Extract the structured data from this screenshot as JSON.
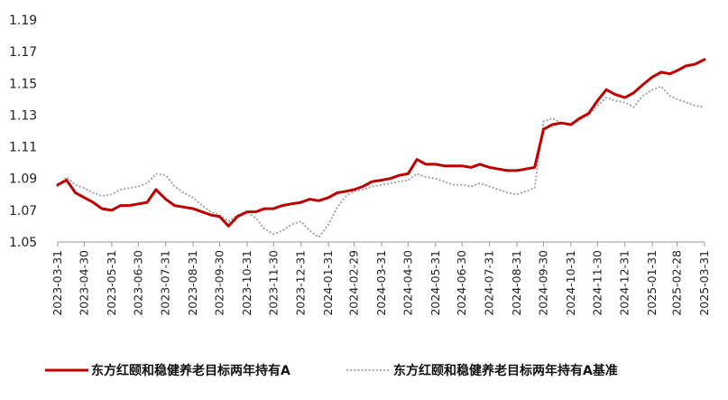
{
  "chart_data": {
    "type": "line",
    "title": "",
    "xlabel": "",
    "ylabel": "",
    "ylim": [
      1.05,
      1.19
    ],
    "yticks": [
      "1.05",
      "1.07",
      "1.09",
      "1.11",
      "1.13",
      "1.15",
      "1.17",
      "1.19"
    ],
    "xticks": [
      "2023-03-31",
      "2023-04-30",
      "2023-05-31",
      "2023-06-30",
      "2023-07-31",
      "2023-08-31",
      "2023-09-30",
      "2023-10-31",
      "2023-11-30",
      "2023-12-31",
      "2024-01-31",
      "2024-02-29",
      "2024-03-31",
      "2024-04-30",
      "2024-05-31",
      "2024-06-30",
      "2024-07-31",
      "2024-08-31",
      "2024-09-30",
      "2024-10-31",
      "2024-11-30",
      "2024-12-31",
      "2025-01-31",
      "2025-02-28",
      "2025-03-31"
    ],
    "grid": false,
    "legend_position": "bottom",
    "series": [
      {
        "name": "东方红颐和稳健养老目标两年持有A",
        "color": "#c00000",
        "style": "solid",
        "points": [
          [
            "2023-03-31",
            1.086
          ],
          [
            "2023-04-10",
            1.089
          ],
          [
            "2023-04-20",
            1.081
          ],
          [
            "2023-04-30",
            1.078
          ],
          [
            "2023-05-10",
            1.075
          ],
          [
            "2023-05-20",
            1.071
          ],
          [
            "2023-05-31",
            1.07
          ],
          [
            "2023-06-10",
            1.073
          ],
          [
            "2023-06-20",
            1.073
          ],
          [
            "2023-06-30",
            1.074
          ],
          [
            "2023-07-10",
            1.075
          ],
          [
            "2023-07-20",
            1.083
          ],
          [
            "2023-07-31",
            1.077
          ],
          [
            "2023-08-10",
            1.073
          ],
          [
            "2023-08-20",
            1.072
          ],
          [
            "2023-08-31",
            1.071
          ],
          [
            "2023-09-10",
            1.069
          ],
          [
            "2023-09-20",
            1.067
          ],
          [
            "2023-09-30",
            1.066
          ],
          [
            "2023-10-10",
            1.06
          ],
          [
            "2023-10-20",
            1.066
          ],
          [
            "2023-10-31",
            1.069
          ],
          [
            "2023-11-10",
            1.069
          ],
          [
            "2023-11-20",
            1.071
          ],
          [
            "2023-11-30",
            1.071
          ],
          [
            "2023-12-10",
            1.073
          ],
          [
            "2023-12-20",
            1.074
          ],
          [
            "2023-12-31",
            1.075
          ],
          [
            "2024-01-10",
            1.077
          ],
          [
            "2024-01-20",
            1.076
          ],
          [
            "2024-01-31",
            1.078
          ],
          [
            "2024-02-10",
            1.081
          ],
          [
            "2024-02-20",
            1.082
          ],
          [
            "2024-02-29",
            1.083
          ],
          [
            "2024-03-10",
            1.085
          ],
          [
            "2024-03-20",
            1.088
          ],
          [
            "2024-03-31",
            1.089
          ],
          [
            "2024-04-10",
            1.09
          ],
          [
            "2024-04-20",
            1.092
          ],
          [
            "2024-04-30",
            1.093
          ],
          [
            "2024-05-10",
            1.102
          ],
          [
            "2024-05-20",
            1.099
          ],
          [
            "2024-05-31",
            1.099
          ],
          [
            "2024-06-10",
            1.098
          ],
          [
            "2024-06-20",
            1.098
          ],
          [
            "2024-06-30",
            1.098
          ],
          [
            "2024-07-10",
            1.097
          ],
          [
            "2024-07-20",
            1.099
          ],
          [
            "2024-07-31",
            1.097
          ],
          [
            "2024-08-10",
            1.096
          ],
          [
            "2024-08-20",
            1.095
          ],
          [
            "2024-08-31",
            1.095
          ],
          [
            "2024-09-10",
            1.096
          ],
          [
            "2024-09-20",
            1.097
          ],
          [
            "2024-09-30",
            1.121
          ],
          [
            "2024-10-10",
            1.124
          ],
          [
            "2024-10-20",
            1.125
          ],
          [
            "2024-10-31",
            1.124
          ],
          [
            "2024-11-10",
            1.128
          ],
          [
            "2024-11-20",
            1.131
          ],
          [
            "2024-11-30",
            1.139
          ],
          [
            "2024-12-10",
            1.146
          ],
          [
            "2024-12-20",
            1.143
          ],
          [
            "2024-12-31",
            1.141
          ],
          [
            "2025-01-10",
            1.144
          ],
          [
            "2025-01-20",
            1.149
          ],
          [
            "2025-01-31",
            1.154
          ],
          [
            "2025-02-10",
            1.157
          ],
          [
            "2025-02-20",
            1.156
          ],
          [
            "2025-02-28",
            1.158
          ],
          [
            "2025-03-10",
            1.161
          ],
          [
            "2025-03-20",
            1.162
          ],
          [
            "2025-03-31",
            1.165
          ]
        ]
      },
      {
        "name": "东方红颐和稳健养老目标两年持有A基准",
        "color": "#a6a6a6",
        "style": "dotted",
        "points": [
          [
            "2023-03-31",
            1.085
          ],
          [
            "2023-04-10",
            1.091
          ],
          [
            "2023-04-20",
            1.086
          ],
          [
            "2023-04-30",
            1.084
          ],
          [
            "2023-05-10",
            1.081
          ],
          [
            "2023-05-20",
            1.079
          ],
          [
            "2023-05-31",
            1.08
          ],
          [
            "2023-06-10",
            1.083
          ],
          [
            "2023-06-20",
            1.084
          ],
          [
            "2023-06-30",
            1.085
          ],
          [
            "2023-07-10",
            1.087
          ],
          [
            "2023-07-20",
            1.093
          ],
          [
            "2023-07-31",
            1.092
          ],
          [
            "2023-08-10",
            1.085
          ],
          [
            "2023-08-20",
            1.081
          ],
          [
            "2023-08-31",
            1.078
          ],
          [
            "2023-09-10",
            1.073
          ],
          [
            "2023-09-20",
            1.069
          ],
          [
            "2023-09-30",
            1.067
          ],
          [
            "2023-10-10",
            1.063
          ],
          [
            "2023-10-20",
            1.067
          ],
          [
            "2023-10-31",
            1.069
          ],
          [
            "2023-11-10",
            1.065
          ],
          [
            "2023-11-20",
            1.058
          ],
          [
            "2023-11-30",
            1.055
          ],
          [
            "2023-12-10",
            1.057
          ],
          [
            "2023-12-20",
            1.061
          ],
          [
            "2023-12-31",
            1.063
          ],
          [
            "2024-01-10",
            1.057
          ],
          [
            "2024-01-20",
            1.053
          ],
          [
            "2024-01-31",
            1.061
          ],
          [
            "2024-02-10",
            1.072
          ],
          [
            "2024-02-20",
            1.079
          ],
          [
            "2024-02-29",
            1.082
          ],
          [
            "2024-03-10",
            1.083
          ],
          [
            "2024-03-20",
            1.085
          ],
          [
            "2024-03-31",
            1.086
          ],
          [
            "2024-04-10",
            1.087
          ],
          [
            "2024-04-20",
            1.088
          ],
          [
            "2024-04-30",
            1.089
          ],
          [
            "2024-05-10",
            1.093
          ],
          [
            "2024-05-20",
            1.091
          ],
          [
            "2024-05-31",
            1.09
          ],
          [
            "2024-06-10",
            1.088
          ],
          [
            "2024-06-20",
            1.086
          ],
          [
            "2024-06-30",
            1.086
          ],
          [
            "2024-07-10",
            1.085
          ],
          [
            "2024-07-20",
            1.087
          ],
          [
            "2024-07-31",
            1.085
          ],
          [
            "2024-08-10",
            1.083
          ],
          [
            "2024-08-20",
            1.081
          ],
          [
            "2024-08-31",
            1.08
          ],
          [
            "2024-09-10",
            1.082
          ],
          [
            "2024-09-20",
            1.084
          ],
          [
            "2024-09-30",
            1.126
          ],
          [
            "2024-10-10",
            1.128
          ],
          [
            "2024-10-20",
            1.125
          ],
          [
            "2024-10-31",
            1.124
          ],
          [
            "2024-11-10",
            1.127
          ],
          [
            "2024-11-20",
            1.13
          ],
          [
            "2024-11-30",
            1.136
          ],
          [
            "2024-12-10",
            1.141
          ],
          [
            "2024-12-20",
            1.139
          ],
          [
            "2024-12-31",
            1.138
          ],
          [
            "2025-01-10",
            1.135
          ],
          [
            "2025-01-20",
            1.142
          ],
          [
            "2025-01-31",
            1.146
          ],
          [
            "2025-02-10",
            1.148
          ],
          [
            "2025-02-20",
            1.142
          ],
          [
            "2025-02-28",
            1.14
          ],
          [
            "2025-03-10",
            1.138
          ],
          [
            "2025-03-20",
            1.136
          ],
          [
            "2025-03-31",
            1.135
          ]
        ]
      }
    ]
  }
}
